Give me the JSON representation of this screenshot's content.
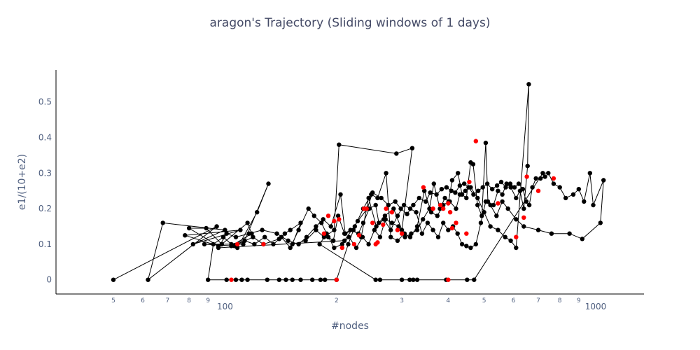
{
  "chart_data": {
    "type": "scatter",
    "mode": "lines+markers",
    "title": "aragon's Trajectory (Sliding windows of 1 days)",
    "xlabel": "#nodes",
    "ylabel": "e1/(10+e2)",
    "x_scale": "log",
    "xlim": [
      35,
      1350
    ],
    "ylim": [
      -0.04,
      0.59
    ],
    "grid": false,
    "y_ticks": [
      {
        "value": 0,
        "label": "0"
      },
      {
        "value": 0.1,
        "label": "0.1"
      },
      {
        "value": 0.2,
        "label": "0.2"
      },
      {
        "value": 0.3,
        "label": "0.3"
      },
      {
        "value": 0.4,
        "label": "0.4"
      },
      {
        "value": 0.5,
        "label": "0.5"
      }
    ],
    "x_ticks": [
      {
        "value": 50,
        "label": "5",
        "kind": "minor"
      },
      {
        "value": 60,
        "label": "6",
        "kind": "minor"
      },
      {
        "value": 70,
        "label": "7",
        "kind": "minor"
      },
      {
        "value": 80,
        "label": "8",
        "kind": "minor"
      },
      {
        "value": 90,
        "label": "9",
        "kind": "minor"
      },
      {
        "value": 100,
        "label": "100",
        "kind": "major"
      },
      {
        "value": 200,
        "label": "2",
        "kind": "minor"
      },
      {
        "value": 300,
        "label": "3",
        "kind": "minor"
      },
      {
        "value": 400,
        "label": "4",
        "kind": "minor"
      },
      {
        "value": 500,
        "label": "5",
        "kind": "minor"
      },
      {
        "value": 600,
        "label": "6",
        "kind": "minor"
      },
      {
        "value": 700,
        "label": "7",
        "kind": "minor"
      },
      {
        "value": 800,
        "label": "8",
        "kind": "minor"
      },
      {
        "value": 900,
        "label": "9",
        "kind": "minor"
      },
      {
        "value": 1000,
        "label": "1000",
        "kind": "major"
      }
    ],
    "colors": {
      "line": "#000000",
      "marker": "#000000",
      "highlight": "#ff0000",
      "text": "#506080",
      "title": "#444a66"
    },
    "series": [
      {
        "values": [
          [
            50,
            0
          ],
          [
            95,
            0.15
          ],
          [
            62,
            0
          ],
          [
            68,
            0.16
          ],
          [
            100,
            0.14
          ],
          [
            82,
            0.1
          ],
          [
            110,
            0.14
          ],
          [
            78,
            0.125
          ],
          [
            96,
            0.095
          ],
          [
            80,
            0.145
          ],
          [
            89,
            0.145
          ],
          [
            98,
            0.1
          ],
          [
            115,
            0.16
          ],
          [
            118,
            0.13
          ],
          [
            104,
            0.095
          ],
          [
            108,
            0.09
          ],
          [
            122,
            0.19
          ],
          [
            131,
            0.27
          ],
          [
            112,
            0.1
          ],
          [
            98,
            0.1
          ],
          [
            88,
            0.1
          ],
          [
            106,
            0.095
          ],
          [
            119,
            0.12
          ],
          [
            127,
            0.1
          ],
          [
            140,
            0.115
          ],
          [
            145,
            0.13
          ],
          [
            150,
            0.14
          ],
          [
            160,
            0.16
          ],
          [
            152,
            0.1
          ],
          [
            165,
            0.11
          ],
          [
            176,
            0.14
          ],
          [
            185,
            0.12
          ],
          [
            197,
            0.14
          ],
          [
            203,
            0.38
          ],
          [
            290,
            0.355
          ],
          [
            320,
            0.37
          ],
          [
            300,
            0.14
          ],
          [
            285,
            0.2
          ],
          [
            270,
            0.18
          ],
          [
            260,
            0.16
          ],
          [
            255,
            0.21
          ],
          [
            245,
            0.2
          ],
          [
            236,
            0.16
          ],
          [
            229,
            0.13
          ],
          [
            218,
            0.14
          ],
          [
            210,
            0.13
          ],
          [
            202,
            0.18
          ],
          [
            196,
            0.11
          ],
          [
            190,
            0.12
          ],
          [
            182,
            0.16
          ],
          [
            174,
            0.18
          ],
          [
            168,
            0.2
          ],
          [
            158,
            0.14
          ],
          [
            150,
            0.09
          ],
          [
            142,
            0.12
          ],
          [
            135,
            0.1
          ],
          [
            128,
            0.12
          ],
          [
            120,
            0.1
          ],
          [
            113,
            0.11
          ],
          [
            104,
            0.1
          ],
          [
            99,
            0.12
          ],
          [
            93,
            0.1
          ],
          [
            90,
            0
          ],
          [
            101,
            0
          ],
          [
            107,
            0
          ],
          [
            111,
            0
          ],
          [
            115,
            0
          ],
          [
            130,
            0
          ],
          [
            140,
            0
          ],
          [
            146,
            0
          ],
          [
            152,
            0
          ],
          [
            160,
            0
          ],
          [
            172,
            0
          ],
          [
            181,
            0
          ],
          [
            186,
            0
          ],
          [
            200,
            0
          ],
          [
            215,
            0.1
          ],
          [
            224,
            0.15
          ],
          [
            236,
            0.2
          ],
          [
            248,
            0.24
          ],
          [
            258,
            0.23
          ],
          [
            272,
            0.3
          ],
          [
            280,
            0.12
          ],
          [
            292,
            0.11
          ],
          [
            305,
            0.13
          ],
          [
            316,
            0.12
          ],
          [
            330,
            0.15
          ],
          [
            345,
            0.25
          ],
          [
            360,
            0.19
          ],
          [
            374,
            0.18
          ],
          [
            388,
            0.21
          ],
          [
            401,
            0.22
          ],
          [
            410,
            0.28
          ],
          [
            425,
            0.3
          ],
          [
            436,
            0.24
          ],
          [
            448,
            0.23
          ],
          [
            460,
            0.33
          ],
          [
            467,
            0.325
          ],
          [
            480,
            0.21
          ],
          [
            493,
            0.18
          ],
          [
            505,
            0.385
          ],
          [
            512,
            0.22
          ],
          [
            530,
            0.21
          ],
          [
            545,
            0.25
          ],
          [
            560,
            0.24
          ],
          [
            575,
            0.27
          ],
          [
            590,
            0.26
          ],
          [
            610,
            0.23
          ],
          [
            625,
            0.25
          ],
          [
            640,
            0.2
          ],
          [
            655,
            0.32
          ],
          [
            660,
            0.55
          ],
          [
            610,
            0.09
          ],
          [
            590,
            0.11
          ],
          [
            570,
            0.12
          ],
          [
            545,
            0.14
          ],
          [
            520,
            0.15
          ],
          [
            500,
            0.19
          ],
          [
            480,
            0.23
          ],
          [
            460,
            0.26
          ],
          [
            445,
            0.25
          ],
          [
            430,
            0.24
          ],
          [
            420,
            0.2
          ],
          [
            404,
            0.22
          ],
          [
            392,
            0.23
          ],
          [
            380,
            0.2
          ],
          [
            366,
            0.27
          ],
          [
            356,
            0.2
          ],
          [
            342,
            0.17
          ],
          [
            330,
            0.14
          ],
          [
            318,
            0.13
          ],
          [
            306,
            0.12
          ],
          [
            294,
            0.15
          ],
          [
            282,
            0.16
          ],
          [
            271,
            0.17
          ],
          [
            262,
            0.12
          ],
          [
            253,
            0.14
          ],
          [
            244,
            0.1
          ],
          [
            235,
            0.12
          ],
          [
            226,
            0.09
          ],
          [
            216,
            0.12
          ],
          [
            207,
            0.1
          ],
          [
            197,
            0.09
          ],
          [
            188,
            0.13
          ],
          [
            180,
            0.1
          ],
          [
            255,
            0
          ],
          [
            262,
            0
          ],
          [
            300,
            0
          ],
          [
            315,
            0
          ],
          [
            322,
            0
          ],
          [
            330,
            0
          ],
          [
            395,
            0
          ],
          [
            450,
            0
          ],
          [
            470,
            0
          ],
          [
            720,
            0.3
          ],
          [
            745,
            0.3
          ],
          [
            770,
            0.27
          ],
          [
            800,
            0.26
          ],
          [
            830,
            0.23
          ],
          [
            870,
            0.24
          ],
          [
            900,
            0.255
          ],
          [
            930,
            0.22
          ],
          [
            965,
            0.3
          ],
          [
            985,
            0.21
          ],
          [
            1050,
            0.28
          ],
          [
            1030,
            0.16
          ],
          [
            920,
            0.115
          ],
          [
            850,
            0.13
          ],
          [
            760,
            0.13
          ],
          [
            700,
            0.14
          ],
          [
            640,
            0.15
          ],
          [
            610,
            0.17
          ],
          [
            580,
            0.2
          ],
          [
            560,
            0.22
          ],
          [
            540,
            0.18
          ],
          [
            520,
            0.21
          ],
          [
            505,
            0.22
          ],
          [
            490,
            0.16
          ],
          [
            475,
            0.1
          ],
          [
            460,
            0.09
          ],
          [
            448,
            0.095
          ],
          [
            436,
            0.1
          ],
          [
            424,
            0.13
          ],
          [
            412,
            0.15
          ],
          [
            400,
            0.14
          ],
          [
            388,
            0.16
          ],
          [
            376,
            0.12
          ],
          [
            364,
            0.14
          ],
          [
            352,
            0.16
          ],
          [
            340,
            0.13
          ],
          [
            328,
            0.19
          ],
          [
            316,
            0.2
          ],
          [
            304,
            0.21
          ],
          [
            292,
            0.18
          ],
          [
            280,
            0.14
          ],
          [
            268,
            0.17
          ],
          [
            256,
            0.15
          ],
          [
            244,
            0.23
          ],
          [
            233,
            0.12
          ],
          [
            222,
            0.14
          ],
          [
            211,
            0.13
          ],
          [
            205,
            0.24
          ],
          [
            193,
            0.15
          ],
          [
            184,
            0.17
          ],
          [
            176,
            0.15
          ],
          [
            166,
            0.12
          ],
          [
            158,
            0.1
          ],
          [
            148,
            0.11
          ],
          [
            138,
            0.13
          ],
          [
            126,
            0.14
          ],
          [
            116,
            0.13
          ],
          [
            107,
            0.12
          ],
          [
            101,
            0.13
          ],
          [
            96,
            0.09
          ],
          [
            210,
            0.11
          ],
          [
            228,
            0.165
          ],
          [
            242,
            0.2
          ],
          [
            250,
            0.245
          ],
          [
            264,
            0.23
          ],
          [
            276,
            0.21
          ],
          [
            288,
            0.22
          ],
          [
            298,
            0.2
          ],
          [
            310,
            0.185
          ],
          [
            322,
            0.21
          ],
          [
            334,
            0.23
          ],
          [
            348,
            0.22
          ],
          [
            358,
            0.245
          ],
          [
            372,
            0.24
          ],
          [
            384,
            0.255
          ],
          [
            396,
            0.26
          ],
          [
            408,
            0.25
          ],
          [
            418,
            0.245
          ],
          [
            430,
            0.265
          ],
          [
            442,
            0.27
          ],
          [
            454,
            0.26
          ],
          [
            468,
            0.24
          ],
          [
            482,
            0.25
          ],
          [
            496,
            0.26
          ],
          [
            510,
            0.27
          ],
          [
            526,
            0.255
          ],
          [
            542,
            0.265
          ],
          [
            556,
            0.275
          ],
          [
            572,
            0.26
          ],
          [
            588,
            0.27
          ],
          [
            604,
            0.26
          ],
          [
            620,
            0.27
          ],
          [
            636,
            0.255
          ],
          [
            650,
            0.22
          ],
          [
            662,
            0.21
          ],
          [
            675,
            0.26
          ],
          [
            690,
            0.285
          ],
          [
            710,
            0.285
          ],
          [
            730,
            0.29
          ]
        ]
      },
      {
        "values": [
          [
            104,
            0
          ],
          [
            108,
            0.1
          ],
          [
            127,
            0.1
          ],
          [
            185,
            0.13
          ],
          [
            190,
            0.18
          ],
          [
            197,
            0.165
          ],
          [
            203,
            0.17
          ],
          [
            207,
            0.09
          ],
          [
            223,
            0.1
          ],
          [
            230,
            0.125
          ],
          [
            237,
            0.2
          ],
          [
            241,
            0.2
          ],
          [
            250,
            0.16
          ],
          [
            255,
            0.1
          ],
          [
            258,
            0.105
          ],
          [
            267,
            0.155
          ],
          [
            272,
            0.2
          ],
          [
            282,
            0.19
          ],
          [
            292,
            0.14
          ],
          [
            300,
            0.13
          ],
          [
            343,
            0.26
          ],
          [
            364,
            0.2
          ],
          [
            381,
            0.21
          ],
          [
            388,
            0.2
          ],
          [
            400,
            0.215
          ],
          [
            405,
            0.19
          ],
          [
            410,
            0.145
          ],
          [
            420,
            0.16
          ],
          [
            448,
            0.13
          ],
          [
            475,
            0.39
          ],
          [
            456,
            0.275
          ],
          [
            545,
            0.215
          ],
          [
            610,
            0.12
          ],
          [
            640,
            0.175
          ],
          [
            652,
            0.29
          ],
          [
            700,
            0.25
          ],
          [
            770,
            0.285
          ],
          [
            200,
            0
          ],
          [
            400,
            0
          ]
        ]
      }
    ]
  }
}
